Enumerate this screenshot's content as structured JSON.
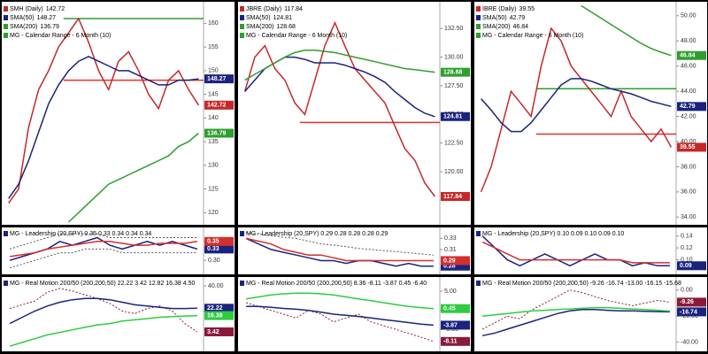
{
  "chart_data": [
    {
      "type": "line",
      "title": "SMH (Daily)",
      "range_label": "MG - Calendar Range - 6 Month (10)",
      "categories": [
        null,
        null,
        null,
        null,
        null,
        null,
        null,
        null,
        null,
        null,
        null,
        null,
        null,
        null,
        null,
        null,
        null,
        null,
        null,
        null
      ],
      "ylim": [
        118,
        164
      ],
      "yticks": [
        120,
        125,
        130,
        135,
        140,
        145,
        150,
        155,
        160
      ],
      "levels": [
        {
          "value": 161,
          "color": "#2e9e2e"
        },
        {
          "value": 148,
          "color": "#e03030"
        }
      ],
      "series": [
        {
          "name": "SMH (Daily)",
          "color": "#c62828",
          "badge": true,
          "values": [
            122,
            125,
            138,
            146,
            150,
            155,
            158,
            161,
            156,
            150,
            146,
            152,
            154,
            150,
            145,
            142,
            148,
            150,
            146,
            142.72
          ]
        },
        {
          "name": "SMA(50)",
          "color": "#1a237e",
          "badge": true,
          "values": [
            123,
            126,
            131,
            137,
            143,
            147,
            150,
            152,
            153,
            152,
            151,
            150,
            150,
            149,
            148,
            147,
            147,
            148,
            148,
            148.27
          ]
        },
        {
          "name": "SMA(200)",
          "color": "#2e9e2e",
          "badge": true,
          "values": [
            null,
            null,
            null,
            null,
            null,
            null,
            118,
            120,
            122,
            124,
            126,
            127,
            128,
            129,
            130,
            131,
            132,
            134,
            135,
            136.79
          ]
        }
      ]
    },
    {
      "type": "line",
      "title": "MG - Leadership (20,SPY) 0.35 0.33 0.34 0.34 0.34",
      "categories": [
        null,
        null,
        null,
        null,
        null,
        null,
        null,
        null,
        null,
        null,
        null,
        null,
        null,
        null,
        null,
        null
      ],
      "ylim": [
        0.27,
        0.38
      ],
      "yticks": [
        {
          "value": 0.3,
          "label": "0.30"
        },
        {
          "value": 0.35,
          "label": "0.35"
        }
      ],
      "series": [
        {
          "name": "Leadership",
          "color": "#1a237e",
          "badge": true,
          "values": [
            0.3,
            0.31,
            0.32,
            0.33,
            0.35,
            0.34,
            0.35,
            0.36,
            0.34,
            0.33,
            0.34,
            0.35,
            0.34,
            0.35,
            0.34,
            0.33
          ]
        },
        {
          "name": "Average",
          "color": "#d32f2f",
          "badge": true,
          "values": [
            0.31,
            0.315,
            0.32,
            0.33,
            0.335,
            0.34,
            0.345,
            0.35,
            0.35,
            0.345,
            0.34,
            0.34,
            0.345,
            0.345,
            0.345,
            0.35
          ]
        },
        {
          "name": "Upper band",
          "color": "#555555",
          "dash": true,
          "values": [
            0.33,
            0.34,
            0.35,
            0.36,
            0.37,
            0.37,
            0.37,
            0.37,
            0.36,
            0.36,
            0.36,
            0.36,
            0.36,
            0.36,
            0.36,
            0.36
          ]
        },
        {
          "name": "Lower band",
          "color": "#555555",
          "dash": true,
          "values": [
            0.28,
            0.29,
            0.3,
            0.31,
            0.32,
            0.32,
            0.33,
            0.33,
            0.33,
            0.32,
            0.32,
            0.32,
            0.32,
            0.32,
            0.32,
            0.32
          ]
        }
      ]
    },
    {
      "type": "line",
      "title": "MG - Real Motion 200/50 (200,200,50) 22.22 3.42 12.82 16.38 4.50",
      "categories": [
        null,
        null,
        null,
        null,
        null,
        null,
        null,
        null,
        null,
        null,
        null,
        null,
        null,
        null,
        null,
        null
      ],
      "ylim": [
        -10,
        45
      ],
      "yticks": [
        {
          "value": 20,
          "label": "20.00"
        },
        {
          "value": 40,
          "label": "40.00"
        }
      ],
      "series": [
        {
          "name": "Real Motion",
          "color": "#8b1a3a",
          "dash": true,
          "badge": true,
          "values": [
            22,
            25,
            28,
            35,
            38,
            36,
            33,
            30,
            26,
            20,
            18,
            22,
            24,
            20,
            10,
            3.42
          ]
        },
        {
          "name": "Mean",
          "color": "#1a237e",
          "badge": true,
          "values": [
            10,
            15,
            20,
            24,
            27,
            29,
            30,
            30,
            29,
            27,
            25,
            24,
            23,
            22,
            22,
            22.22
          ]
        },
        {
          "name": "Slow",
          "color": "#2ecc40",
          "badge": true,
          "values": [
            -8,
            -5,
            -2,
            1,
            3,
            5,
            7,
            9,
            10,
            12,
            13,
            14,
            15,
            15.5,
            16,
            16.38
          ]
        }
      ]
    },
    {
      "type": "line",
      "title": "JBRE (Daily)",
      "range_label": "MG - Calendar Range - 6 Month (10)",
      "categories": [
        null,
        null,
        null,
        null,
        null,
        null,
        null,
        null,
        null,
        null,
        null,
        null,
        null,
        null,
        null,
        null,
        null,
        null,
        null,
        null
      ],
      "ylim": [
        115.6,
        134.6
      ],
      "yticks": [
        {
          "value": 120,
          "label": "120.00"
        },
        {
          "value": 122.5,
          "label": "122.50"
        },
        {
          "value": 125,
          "label": "125.00"
        },
        {
          "value": 127.5,
          "label": "127.50"
        },
        {
          "value": 130,
          "label": "130.00"
        },
        {
          "value": 132.5,
          "label": "132.50"
        }
      ],
      "levels": [
        {
          "value": 124.3,
          "color": "#e03030"
        }
      ],
      "series": [
        {
          "name": "JBRE (Daily)",
          "color": "#c62828",
          "badge": true,
          "values": [
            127,
            130,
            131,
            129,
            128,
            126,
            125,
            128,
            131,
            133,
            131,
            129,
            128,
            127,
            126,
            124,
            122,
            121,
            119,
            117.84
          ]
        },
        {
          "name": "SMA(50)",
          "color": "#1a237e",
          "badge": true,
          "values": [
            127,
            128,
            129,
            129.5,
            130,
            130,
            129.8,
            129.5,
            129.5,
            129.5,
            129.3,
            129,
            128.7,
            128.3,
            127.8,
            127,
            126.3,
            125.6,
            125.1,
            124.81
          ]
        },
        {
          "name": "SMA(200)",
          "color": "#2e9e2e",
          "badge": true,
          "values": [
            128,
            128.5,
            129,
            129.5,
            130,
            130.4,
            130.6,
            130.6,
            130.5,
            130.4,
            130.2,
            130,
            129.8,
            129.6,
            129.4,
            129.2,
            129,
            128.9,
            128.8,
            128.68
          ]
        }
      ]
    },
    {
      "type": "line",
      "title": "MG - Leadership (20,SPY) 0.29 0.28 0.28 0.28 0.29",
      "categories": [
        null,
        null,
        null,
        null,
        null,
        null,
        null,
        null,
        null,
        null,
        null,
        null,
        null,
        null,
        null,
        null
      ],
      "ylim": [
        0.27,
        0.345
      ],
      "yticks": [
        {
          "value": 0.31,
          "label": "0.31"
        },
        {
          "value": 0.33,
          "label": "0.33"
        }
      ],
      "series": [
        {
          "name": "Leadership",
          "color": "#1a237e",
          "badge": true,
          "values": [
            0.33,
            0.32,
            0.31,
            0.305,
            0.3,
            0.295,
            0.29,
            0.29,
            0.285,
            0.29,
            0.29,
            0.285,
            0.28,
            0.285,
            0.28,
            0.28
          ]
        },
        {
          "name": "Average",
          "color": "#d32f2f",
          "badge": true,
          "values": [
            0.33,
            0.325,
            0.32,
            0.31,
            0.305,
            0.3,
            0.3,
            0.295,
            0.29,
            0.29,
            0.29,
            0.29,
            0.29,
            0.29,
            0.29,
            0.29
          ]
        },
        {
          "name": "Upper band",
          "color": "#555555",
          "dash": true,
          "values": [
            0.34,
            0.338,
            0.335,
            0.332,
            0.33,
            0.325,
            0.32,
            0.318,
            0.315,
            0.312,
            0.31,
            0.308,
            0.306,
            0.304,
            0.302,
            0.3
          ]
        }
      ]
    },
    {
      "type": "line",
      "title": "MG - Real Motion 200/50 (200,200,50) 8.36 -8.11 -3.87 0.45 -6.40",
      "categories": [
        null,
        null,
        null,
        null,
        null,
        null,
        null,
        null,
        null,
        null,
        null,
        null,
        null,
        null,
        null,
        null
      ],
      "ylim": [
        -10,
        8
      ],
      "yticks": [
        {
          "value": -5,
          "label": "-5.00"
        },
        {
          "value": 0,
          "label": "0.00"
        },
        {
          "value": 5,
          "label": "5.00"
        }
      ],
      "series": [
        {
          "name": "Real Motion",
          "color": "#8b1a3a",
          "dash": true,
          "badge": true,
          "values": [
            2,
            1,
            0,
            -1,
            -2,
            0,
            -1,
            -3,
            -2,
            -1,
            -3,
            -4,
            -5,
            -6,
            -7,
            -8.11
          ]
        },
        {
          "name": "Mean",
          "color": "#1a237e",
          "badge": true,
          "values": [
            1,
            1,
            0.8,
            0.5,
            0.3,
            0,
            -0.5,
            -1,
            -1.3,
            -1.6,
            -2,
            -2.4,
            -2.8,
            -3.2,
            -3.6,
            -3.87
          ]
        },
        {
          "name": "Slow",
          "color": "#2ecc40",
          "badge": true,
          "values": [
            3,
            3.5,
            4,
            4.3,
            4.5,
            4.5,
            4.3,
            4,
            3.5,
            3,
            2.5,
            2,
            1.5,
            1,
            0.7,
            0.45
          ]
        }
      ]
    },
    {
      "type": "line",
      "title": "IBRE (Daily)",
      "range_label": "MG - Calendar Range - 6 Month (10)",
      "categories": [
        null,
        null,
        null,
        null,
        null,
        null,
        null,
        null,
        null,
        null,
        null,
        null,
        null,
        null,
        null,
        null,
        null,
        null,
        null,
        null
      ],
      "ylim": [
        33.6,
        50.9
      ],
      "yticks": [
        {
          "value": 34,
          "label": "34.00"
        },
        {
          "value": 36,
          "label": "36.00"
        },
        {
          "value": 38,
          "label": "38.00"
        },
        {
          "value": 40,
          "label": "40.00"
        },
        {
          "value": 42,
          "label": "42.00"
        },
        {
          "value": 44,
          "label": "44.00"
        },
        {
          "value": 46,
          "label": "46.00"
        },
        {
          "value": 48,
          "label": "48.00"
        },
        {
          "value": 50,
          "label": "50.00"
        }
      ],
      "levels": [
        {
          "value": 44.2,
          "color": "#2e9e2e"
        },
        {
          "value": 40.6,
          "color": "#e03030"
        }
      ],
      "series": [
        {
          "name": "IBRE (Daily)",
          "color": "#c62828",
          "badge": true,
          "values": [
            36,
            38,
            41,
            44,
            43,
            42,
            46,
            49,
            48,
            46,
            45,
            44,
            43,
            42,
            44,
            42,
            41,
            40,
            41,
            39.55
          ]
        },
        {
          "name": "SMA(50)",
          "color": "#1a237e",
          "badge": true,
          "values": [
            43.4,
            42.5,
            41.5,
            40.8,
            40.8,
            41.5,
            42.5,
            43.5,
            44.5,
            45,
            45,
            44.8,
            44.5,
            44.2,
            44,
            43.8,
            43.5,
            43.2,
            43,
            42.79
          ]
        },
        {
          "name": "SMA(200)",
          "color": "#2e9e2e",
          "badge": true,
          "values": [
            null,
            null,
            null,
            null,
            null,
            null,
            null,
            null,
            null,
            null,
            50.8,
            50.3,
            49.8,
            49.3,
            48.8,
            48.3,
            47.8,
            47.4,
            47.1,
            46.84
          ]
        }
      ]
    },
    {
      "type": "line",
      "title": "MG - Leadership (20,SPY) 0.10 0.09 0.10 0.09 0.10",
      "categories": [
        null,
        null,
        null,
        null,
        null,
        null,
        null,
        null,
        null,
        null,
        null,
        null,
        null,
        null,
        null,
        null
      ],
      "ylim": [
        0.08,
        0.15
      ],
      "yticks": [
        {
          "value": 0.1,
          "label": "0.10"
        },
        {
          "value": 0.12,
          "label": "0.12"
        },
        {
          "value": 0.14,
          "label": "0.14"
        }
      ],
      "series": [
        {
          "name": "Leadership",
          "color": "#1a237e",
          "badge": true,
          "values": [
            0.14,
            0.12,
            0.1,
            0.09,
            0.1,
            0.11,
            0.1,
            0.09,
            0.1,
            0.11,
            0.1,
            0.1,
            0.09,
            0.095,
            0.09,
            0.09
          ]
        },
        {
          "name": "Average",
          "color": "#d32f2f",
          "values": [
            0.13,
            0.12,
            0.11,
            0.1,
            0.1,
            0.1,
            0.1,
            0.1,
            0.1,
            0.1,
            0.1,
            0.1,
            0.095,
            0.095,
            0.095,
            0.095
          ]
        }
      ]
    },
    {
      "type": "line",
      "title": "MG - Real Motion 200/50 (200,200,50) -9.26 -16.74 -13.00 -16.15 -15.68",
      "categories": [
        null,
        null,
        null,
        null,
        null,
        null,
        null,
        null,
        null,
        null,
        null,
        null,
        null,
        null,
        null,
        null
      ],
      "ylim": [
        -45,
        8
      ],
      "yticks": [
        {
          "value": -40,
          "label": "-40.00"
        },
        {
          "value": -20,
          "label": "-20.00"
        },
        {
          "value": 0,
          "label": "0.00"
        }
      ],
      "series": [
        {
          "name": "Real Motion",
          "color": "#8b1a3a",
          "dash": true,
          "badge": true,
          "values": [
            -30,
            -25,
            -20,
            -22,
            -15,
            -10,
            -5,
            0,
            -2,
            -5,
            -8,
            -10,
            -12,
            -10,
            -8,
            -9.26
          ]
        },
        {
          "name": "Mean",
          "color": "#1a237e",
          "badge": true,
          "values": [
            -35,
            -33,
            -30,
            -27,
            -24,
            -21,
            -18,
            -16,
            -15,
            -15,
            -15.5,
            -16,
            -16,
            -16.3,
            -16.5,
            -16.74
          ]
        },
        {
          "name": "Slow",
          "color": "#2ecc40",
          "values": [
            -20,
            -19,
            -18,
            -17,
            -16,
            -15.5,
            -15,
            -14.5,
            -14,
            -13.5,
            -13.5,
            -14,
            -14.5,
            -15,
            -15.5,
            -16.15
          ]
        }
      ]
    }
  ]
}
